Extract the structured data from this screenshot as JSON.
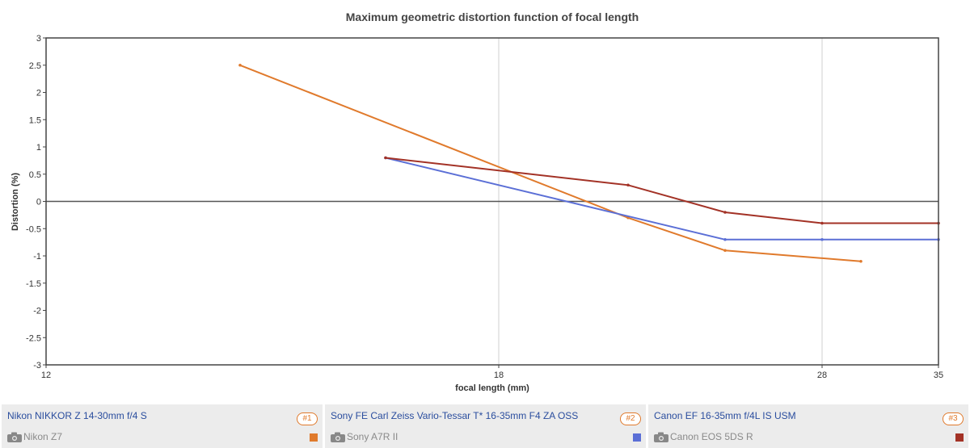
{
  "chart_data": {
    "type": "line",
    "title": "Maximum geometric distortion function of focal length",
    "xlabel": "focal length (mm)",
    "ylabel": "Distortion (%)",
    "xlim": [
      12,
      35
    ],
    "ylim": [
      -3,
      3
    ],
    "x_scale": "reciprocal",
    "x_ticks": [
      12,
      18,
      28,
      35
    ],
    "y_ticks": [
      3,
      2.5,
      2,
      1.5,
      1,
      0.5,
      0,
      -0.5,
      -1,
      -1.5,
      -2,
      -2.5,
      -3
    ],
    "grid": true,
    "series": [
      {
        "name": "Nikon NIKKOR Z 14-30mm f/4 S",
        "color": "#e07a2c",
        "points": [
          [
            14,
            2.5
          ],
          [
            21,
            -0.3
          ],
          [
            24,
            -0.9
          ],
          [
            30,
            -1.1
          ]
        ]
      },
      {
        "name": "Sony FE Carl Zeiss Vario-Tessar T* 16-35mm F4 ZA OSS",
        "color": "#5b6fd6",
        "points": [
          [
            16,
            0.8
          ],
          [
            24,
            -0.7
          ],
          [
            28,
            -0.7
          ],
          [
            35,
            -0.7
          ]
        ]
      },
      {
        "name": "Canon EF 16-35mm f/4L IS USM",
        "color": "#a33226",
        "points": [
          [
            16,
            0.8
          ],
          [
            21,
            0.3
          ],
          [
            24,
            -0.2
          ],
          [
            28,
            -0.4
          ],
          [
            35,
            -0.4
          ]
        ]
      }
    ]
  },
  "legend": [
    {
      "lens": "Nikon NIKKOR Z 14-30mm f/4 S",
      "badge": "#1",
      "camera": "Nikon Z7",
      "color": "#e07a2c"
    },
    {
      "lens": "Sony FE Carl Zeiss Vario-Tessar T* 16-35mm F4 ZA OSS",
      "badge": "#2",
      "camera": "Sony A7R II",
      "color": "#5b6fd6"
    },
    {
      "lens": "Canon EF 16-35mm f/4L IS USM",
      "badge": "#3",
      "camera": "Canon EOS 5DS R",
      "color": "#a33226"
    }
  ]
}
